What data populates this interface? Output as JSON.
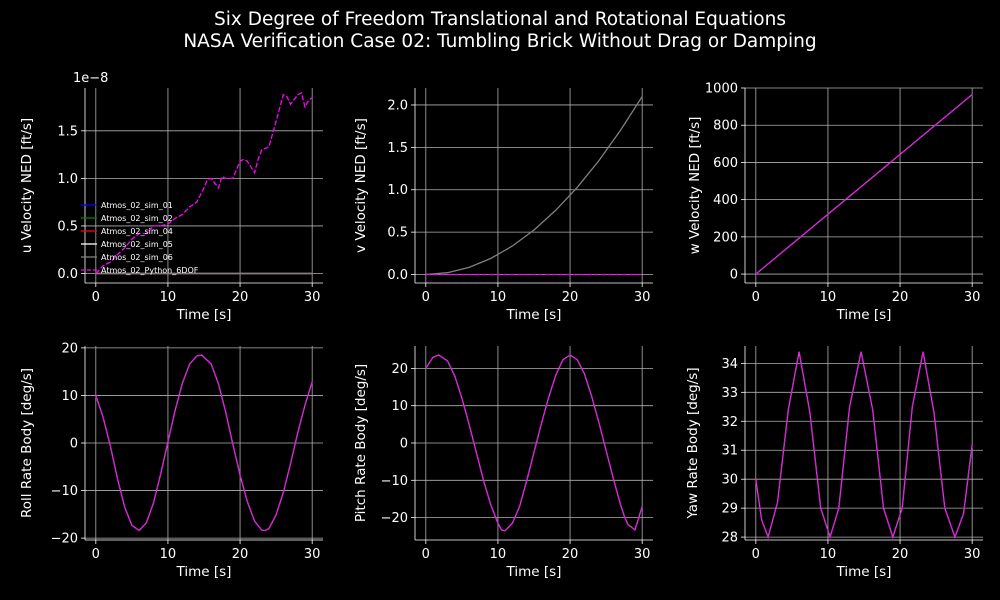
{
  "title_line1": "Six Degree of Freedom Translational and Rotational Equations",
  "title_line2": "NASA Verification Case 02: Tumbling Brick Without Drag or Damping",
  "colors": {
    "background": "#000000",
    "axes": "#ffffff",
    "grid": "#b0b0b0",
    "sim_01": "#0000ff",
    "sim_02": "#008000",
    "sim_04": "#ff0000",
    "sim_05": "#ffffff",
    "sim_06": "#808080",
    "python_6dof": "#ff00ff"
  },
  "legend": [
    {
      "label": "Atmos_02_sim_01",
      "color": "#0000ff",
      "dashed": false
    },
    {
      "label": "Atmos_02_sim_02",
      "color": "#008000",
      "dashed": false
    },
    {
      "label": "Atmos_02_sim_04",
      "color": "#ff0000",
      "dashed": false
    },
    {
      "label": "Atmos_02_sim_05",
      "color": "#ffffff",
      "dashed": false
    },
    {
      "label": "Atmos_02_sim_06",
      "color": "#808080",
      "dashed": false
    },
    {
      "label": "Atmos_02_Python_6DOF",
      "color": "#ff00ff",
      "dashed": true
    }
  ],
  "chart_data": [
    {
      "type": "line",
      "xlabel": "Time [s]",
      "ylabel": "u Velocity NED [ft/s]",
      "offset_text": "1e−8",
      "xlim": [
        -1.5,
        31.5
      ],
      "ylim": [
        -0.1,
        1.95
      ],
      "xticks": [
        0,
        10,
        20,
        30
      ],
      "yticks": [
        0.0,
        0.5,
        1.0,
        1.5
      ],
      "ytick_labels": [
        "0.0",
        "0.5",
        "1.0",
        "1.5"
      ],
      "grid": true,
      "legend_position": "lower-left",
      "series": [
        {
          "name": "Atmos_02_sim_01",
          "color": "#0000ff",
          "dashed": false,
          "x": [
            0,
            30
          ],
          "y": [
            0,
            0
          ]
        },
        {
          "name": "Atmos_02_sim_02",
          "color": "#008000",
          "dashed": false,
          "x": [
            0,
            30
          ],
          "y": [
            0,
            0
          ]
        },
        {
          "name": "Atmos_02_sim_04",
          "color": "#ff0000",
          "dashed": false,
          "x": [
            0,
            30
          ],
          "y": [
            0,
            0
          ]
        },
        {
          "name": "Atmos_02_sim_05",
          "color": "#ffffff",
          "dashed": false,
          "x": [
            0,
            30
          ],
          "y": [
            0,
            0
          ]
        },
        {
          "name": "Atmos_02_sim_06",
          "color": "#808080",
          "dashed": false,
          "x": [
            0,
            30
          ],
          "y": [
            0,
            0
          ]
        },
        {
          "name": "Atmos_02_Python_6DOF",
          "color": "#ff00ff",
          "dashed": true,
          "x": [
            0,
            1,
            2,
            3,
            4,
            5,
            6,
            7,
            8,
            9,
            10,
            11,
            12,
            13,
            14,
            15,
            15.5,
            16,
            17,
            17.5,
            18,
            19,
            20,
            20.5,
            21,
            22,
            22.5,
            23,
            24,
            25,
            26,
            26.5,
            27,
            28,
            28.5,
            29,
            29.5,
            30
          ],
          "y": [
            0.0,
            0.08,
            0.12,
            0.2,
            0.27,
            0.36,
            0.42,
            0.42,
            0.5,
            0.5,
            0.52,
            0.58,
            0.62,
            0.7,
            0.75,
            0.9,
            0.99,
            1.0,
            0.9,
            1.02,
            1.0,
            1.0,
            1.18,
            1.2,
            1.18,
            1.06,
            1.2,
            1.3,
            1.33,
            1.6,
            1.88,
            1.86,
            1.78,
            1.88,
            1.9,
            1.75,
            1.82,
            1.85
          ]
        }
      ]
    },
    {
      "type": "line",
      "xlabel": "Time [s]",
      "ylabel": "v Velocity NED [ft/s]",
      "xlim": [
        -1.5,
        31.5
      ],
      "ylim": [
        -0.1,
        2.2
      ],
      "xticks": [
        0,
        10,
        20,
        30
      ],
      "yticks": [
        0.0,
        0.5,
        1.0,
        1.5,
        2.0
      ],
      "ytick_labels": [
        "0.0",
        "0.5",
        "1.0",
        "1.5",
        "2.0"
      ],
      "grid": true,
      "series": [
        {
          "name": "Atmos_02_sim_06",
          "color": "#808080",
          "dashed": false,
          "x": [
            0,
            3,
            6,
            9,
            12,
            15,
            18,
            21,
            24,
            27,
            30
          ],
          "y": [
            0.0,
            0.021,
            0.084,
            0.189,
            0.336,
            0.525,
            0.756,
            1.029,
            1.344,
            1.701,
            2.1
          ]
        },
        {
          "name": "Atmos_02_Python_6DOF",
          "color": "#ff00ff",
          "dashed": true,
          "x": [
            0,
            30
          ],
          "y": [
            0,
            0
          ]
        }
      ]
    },
    {
      "type": "line",
      "xlabel": "Time [s]",
      "ylabel": "w Velocity NED [ft/s]",
      "xlim": [
        -1.5,
        31.5
      ],
      "ylim": [
        -48,
        1000
      ],
      "xticks": [
        0,
        10,
        20,
        30
      ],
      "yticks": [
        0,
        200,
        400,
        600,
        800,
        1000
      ],
      "ytick_labels": [
        "0",
        "200",
        "400",
        "600",
        "800",
        "1000"
      ],
      "grid": true,
      "series": [
        {
          "name": "Atmos_02_sim_06",
          "color": "#808080",
          "dashed": false,
          "x": [
            0,
            30
          ],
          "y": [
            0,
            965
          ]
        },
        {
          "name": "Atmos_02_Python_6DOF",
          "color": "#ff00ff",
          "dashed": true,
          "x": [
            0,
            30
          ],
          "y": [
            0,
            965
          ]
        }
      ]
    },
    {
      "type": "line",
      "xlabel": "Time [s]",
      "ylabel": "Roll Rate Body [deg/s]",
      "xlim": [
        -1.5,
        31.5
      ],
      "ylim": [
        -20.4,
        20.4
      ],
      "xticks": [
        0,
        10,
        20,
        30
      ],
      "yticks": [
        -20,
        -10,
        0,
        10,
        20
      ],
      "ytick_labels": [
        "−20",
        "−10",
        "0",
        "10",
        "20"
      ],
      "grid": true,
      "series": [
        {
          "name": "Atmos_02_sim_06",
          "color": "#808080",
          "dashed": false,
          "x": [
            0,
            1,
            2,
            3,
            4,
            5,
            6,
            7,
            8,
            9,
            10,
            11,
            12,
            13,
            14,
            14.7,
            16,
            17,
            18,
            19,
            20,
            21,
            22,
            23,
            23.5,
            24,
            25,
            26,
            27,
            28,
            29,
            30
          ],
          "y": [
            10.0,
            5.5,
            -0.5,
            -7.5,
            -13.5,
            -17.3,
            -18.4,
            -16.8,
            -12.6,
            -6.5,
            0.2,
            6.9,
            12.6,
            16.6,
            18.3,
            18.5,
            16.6,
            12.5,
            6.6,
            -0.2,
            -6.8,
            -12.3,
            -16.4,
            -18.3,
            -18.4,
            -18.0,
            -15.1,
            -10.4,
            -4.4,
            2.2,
            8.0,
            12.9
          ]
        },
        {
          "name": "Atmos_02_Python_6DOF",
          "color": "#ff00ff",
          "dashed": true,
          "x": [
            0,
            1,
            2,
            3,
            4,
            5,
            6,
            7,
            8,
            9,
            10,
            11,
            12,
            13,
            14,
            14.7,
            16,
            17,
            18,
            19,
            20,
            21,
            22,
            23,
            23.5,
            24,
            25,
            26,
            27,
            28,
            29,
            30
          ],
          "y": [
            10.0,
            5.5,
            -0.5,
            -7.5,
            -13.5,
            -17.3,
            -18.4,
            -16.8,
            -12.6,
            -6.5,
            0.2,
            6.9,
            12.6,
            16.6,
            18.3,
            18.5,
            16.6,
            12.5,
            6.6,
            -0.2,
            -6.8,
            -12.3,
            -16.4,
            -18.3,
            -18.4,
            -18.0,
            -15.1,
            -10.4,
            -4.4,
            2.2,
            8.0,
            12.9
          ]
        }
      ]
    },
    {
      "type": "line",
      "xlabel": "Time [s]",
      "ylabel": "Pitch Rate Body [deg/s]",
      "xlim": [
        -1.5,
        31.5
      ],
      "ylim": [
        -26,
        26
      ],
      "xticks": [
        0,
        10,
        20,
        30
      ],
      "yticks": [
        -20,
        -10,
        0,
        10,
        20
      ],
      "ytick_labels": [
        "−20",
        "−10",
        "0",
        "10",
        "20"
      ],
      "grid": true,
      "series": [
        {
          "name": "Atmos_02_sim_06",
          "color": "#808080",
          "dashed": false,
          "x": [
            0,
            1,
            1.8,
            3,
            4,
            5,
            6,
            7,
            8,
            9,
            10,
            10.5,
            11,
            12,
            13,
            14,
            15,
            16,
            17,
            18,
            19,
            20,
            21,
            22,
            23,
            24,
            25,
            26,
            27,
            27.5,
            28,
            29,
            30
          ],
          "y": [
            20.0,
            23.0,
            23.6,
            22.0,
            18.0,
            12.0,
            5.0,
            -2.5,
            -10.0,
            -16.5,
            -21.5,
            -23.3,
            -23.5,
            -21.5,
            -17.0,
            -10.0,
            -2.5,
            5.0,
            12.0,
            18.0,
            22.3,
            23.6,
            22.3,
            18.5,
            12.5,
            5.5,
            -2.0,
            -9.5,
            -16.5,
            -19.5,
            -21.8,
            -23.3,
            -17.0
          ]
        },
        {
          "name": "Atmos_02_Python_6DOF",
          "color": "#ff00ff",
          "dashed": true,
          "x": [
            0,
            1,
            1.8,
            3,
            4,
            5,
            6,
            7,
            8,
            9,
            10,
            10.5,
            11,
            12,
            13,
            14,
            15,
            16,
            17,
            18,
            19,
            20,
            21,
            22,
            23,
            24,
            25,
            26,
            27,
            27.5,
            28,
            29,
            30
          ],
          "y": [
            20.0,
            23.0,
            23.6,
            22.0,
            18.0,
            12.0,
            5.0,
            -2.5,
            -10.0,
            -16.5,
            -21.5,
            -23.3,
            -23.5,
            -21.5,
            -17.0,
            -10.0,
            -2.5,
            5.0,
            12.0,
            18.0,
            22.3,
            23.6,
            22.3,
            18.5,
            12.5,
            5.5,
            -2.0,
            -9.5,
            -16.5,
            -19.5,
            -21.8,
            -23.3,
            -17.0
          ]
        }
      ]
    },
    {
      "type": "line",
      "xlabel": "Time [s]",
      "ylabel": "Yaw Rate Body [deg/s]",
      "xlim": [
        -1.5,
        31.5
      ],
      "ylim": [
        27.9,
        34.6
      ],
      "xticks": [
        0,
        10,
        20,
        30
      ],
      "yticks": [
        28,
        29,
        30,
        31,
        32,
        33,
        34
      ],
      "ytick_labels": [
        "28",
        "29",
        "30",
        "31",
        "32",
        "33",
        "34"
      ],
      "grid": true,
      "series": [
        {
          "name": "Atmos_02_sim_06",
          "color": "#808080",
          "dashed": false,
          "x": [
            0,
            0.8,
            1.7,
            3,
            4.5,
            6.0,
            7.5,
            9,
            10.3,
            11.5,
            13,
            14.6,
            16.2,
            17.7,
            19.0,
            20.3,
            21.7,
            23.2,
            24.7,
            26.2,
            27.6,
            28.8,
            30
          ],
          "y": [
            30.0,
            28.6,
            28.0,
            29.2,
            32.4,
            34.4,
            32.3,
            29.0,
            28.0,
            29.0,
            32.5,
            34.4,
            32.4,
            29.0,
            28.0,
            29.0,
            32.5,
            34.4,
            32.3,
            29.0,
            28.0,
            28.8,
            31.2
          ]
        },
        {
          "name": "Atmos_02_Python_6DOF",
          "color": "#ff00ff",
          "dashed": true,
          "x": [
            0,
            0.8,
            1.7,
            3,
            4.5,
            6.0,
            7.5,
            9,
            10.3,
            11.5,
            13,
            14.6,
            16.2,
            17.7,
            19.0,
            20.3,
            21.7,
            23.2,
            24.7,
            26.2,
            27.6,
            28.8,
            30
          ],
          "y": [
            30.0,
            28.6,
            28.0,
            29.2,
            32.4,
            34.4,
            32.3,
            29.0,
            28.0,
            29.0,
            32.5,
            34.4,
            32.4,
            29.0,
            28.0,
            29.0,
            32.5,
            34.4,
            32.3,
            29.0,
            28.0,
            28.8,
            31.2
          ]
        }
      ]
    }
  ]
}
